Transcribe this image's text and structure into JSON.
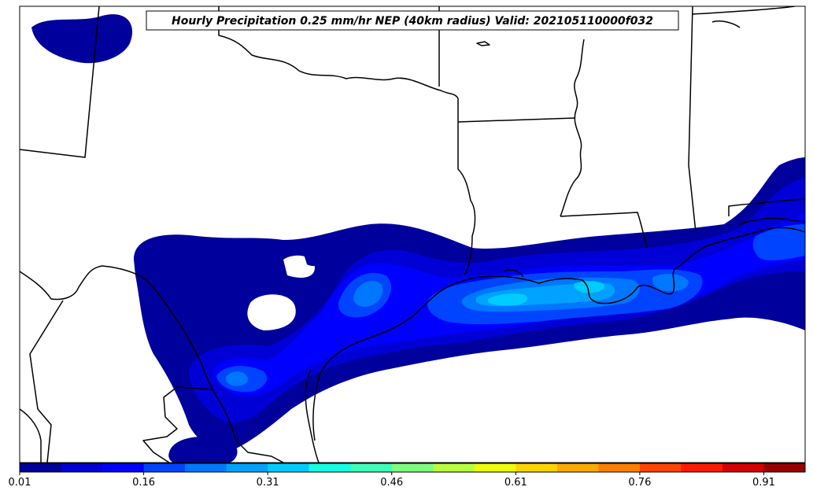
{
  "map": {
    "title": "Hourly Precipitation 0.25 mm/hr NEP (40km radius) Valid: 202105110000f032"
  },
  "colorbar": {
    "colors": [
      "#00009c",
      "#0000d6",
      "#0000ff",
      "#0044ff",
      "#0077ff",
      "#00a2ff",
      "#00ccff",
      "#15ffe1",
      "#40ffb8",
      "#7fff7f",
      "#b8ff40",
      "#ecff0a",
      "#ffd500",
      "#ffaa00",
      "#ff7f00",
      "#ff4400",
      "#ff1a00",
      "#d60000",
      "#990000"
    ],
    "tick_labels": [
      "0.01",
      "0.16",
      "0.31",
      "0.46",
      "0.61",
      "0.76",
      "0.91"
    ]
  }
}
